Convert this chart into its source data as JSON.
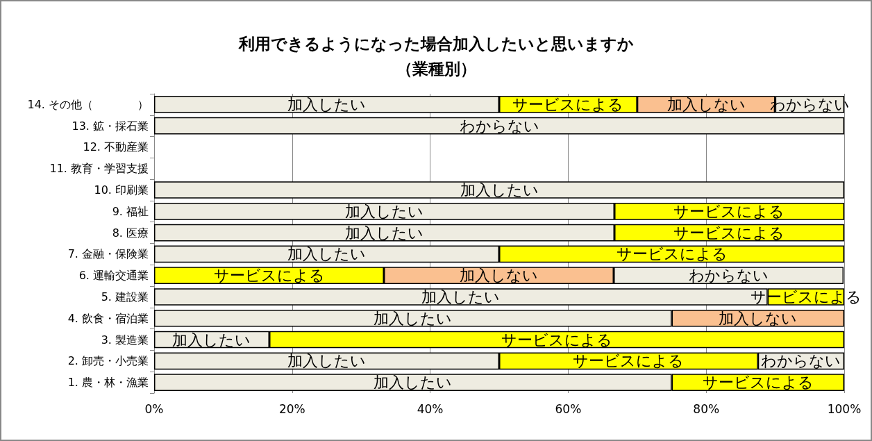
{
  "chart_data": {
    "type": "bar",
    "orientation": "horizontal",
    "stacked": true,
    "title": "利用できるようになった場合加入したいと思いますか（業種別）",
    "categories": [
      "14. その他（　　　　）",
      "13. 鉱・採石業",
      "12. 不動産業",
      "11. 教育・学習支援",
      "10. 印刷業",
      "9. 福祉",
      "8. 医療",
      "7. 金融・保険業",
      "6. 運輸交通業",
      "5. 建設業",
      "4. 飲食・宿泊業",
      "3. 製造業",
      "2. 卸売・小売業",
      "1. 農・林・漁業"
    ],
    "series": [
      {
        "name": "加入したい",
        "color": "#eeece1",
        "values": [
          50,
          null,
          null,
          null,
          100,
          66.7,
          66.7,
          50,
          null,
          88.9,
          75,
          16.7,
          50,
          75
        ]
      },
      {
        "name": "サービスによる",
        "color": "#ffff00",
        "values": [
          20,
          null,
          null,
          null,
          null,
          33.3,
          33.3,
          50,
          33.3,
          11.1,
          null,
          83.3,
          37.5,
          25
        ]
      },
      {
        "name": "加入しない",
        "color": "#fac090",
        "values": [
          20,
          null,
          null,
          null,
          null,
          null,
          null,
          null,
          33.3,
          null,
          25,
          null,
          null,
          null
        ]
      },
      {
        "name": "わからない",
        "color": "#eeece1",
        "values": [
          10,
          100,
          null,
          null,
          null,
          null,
          null,
          null,
          33.3,
          null,
          null,
          null,
          12.5,
          null
        ]
      }
    ],
    "xlim": [
      0,
      100
    ],
    "xticks": [
      {
        "value": 0,
        "label": "0%"
      },
      {
        "value": 20,
        "label": "20%"
      },
      {
        "value": 40,
        "label": "40%"
      },
      {
        "value": 60,
        "label": "60%"
      },
      {
        "value": 80,
        "label": "80%"
      },
      {
        "value": 100,
        "label": "100%"
      }
    ],
    "grid": "x",
    "legend": false
  }
}
